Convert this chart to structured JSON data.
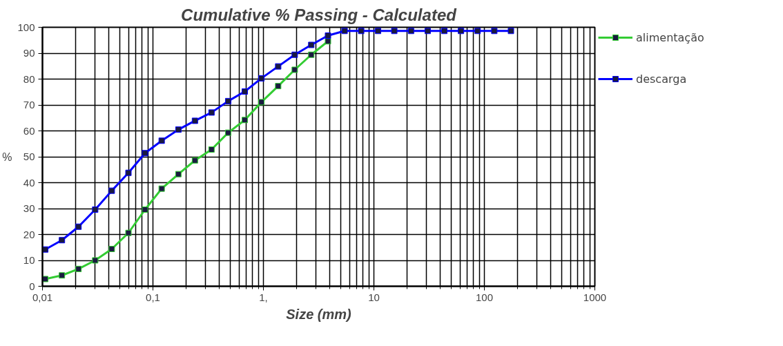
{
  "chart_data": {
    "type": "line",
    "title": "Cumulative % Passing - Calculated",
    "xlabel": "Size (mm)",
    "ylabel": "%",
    "x": [
      0.0106,
      0.015,
      0.0212,
      0.03,
      0.0424,
      0.06,
      0.0848,
      0.12,
      0.17,
      0.24,
      0.339,
      0.48,
      0.678,
      0.959,
      1.36,
      1.92,
      2.71,
      3.84,
      5.43,
      7.67,
      10.9,
      15.3,
      21.7,
      30.7,
      43.4,
      61.4,
      86.8,
      123,
      174
    ],
    "series": [
      {
        "name": "alimentação",
        "color": "#33cc33",
        "values": [
          2.8,
          4.2,
          6.7,
          10.0,
          14.4,
          20.6,
          29.6,
          37.7,
          43.3,
          48.6,
          52.8,
          59.3,
          64.2,
          71.1,
          77.3,
          83.6,
          89.4,
          94.6,
          null,
          null,
          null,
          null,
          null,
          null,
          null,
          null,
          null,
          null,
          null
        ]
      },
      {
        "name": "descarga",
        "color": "#0000ff",
        "values": [
          14.2,
          17.8,
          23.0,
          29.6,
          36.9,
          43.8,
          51.4,
          56.2,
          60.5,
          63.9,
          67.1,
          71.5,
          75.2,
          80.3,
          84.9,
          89.4,
          93.2,
          96.8,
          98.6,
          98.6,
          98.6,
          98.6,
          98.6,
          98.6,
          98.6,
          98.6,
          98.6,
          98.6,
          98.6
        ]
      }
    ],
    "log": "x",
    "xlim": [
      0.01,
      1000
    ],
    "ylim": [
      0,
      100
    ],
    "xticks": [
      {
        "value": 0.01,
        "label": "0,01"
      },
      {
        "value": 0.1,
        "label": "0,1"
      },
      {
        "value": 1,
        "label": "1,"
      },
      10,
      100,
      1000
    ],
    "yticks": [
      0,
      10,
      20,
      30,
      40,
      50,
      60,
      70,
      80,
      90,
      100
    ],
    "grid": true,
    "legend": "right",
    "marker": "square",
    "line_style": "solid"
  }
}
